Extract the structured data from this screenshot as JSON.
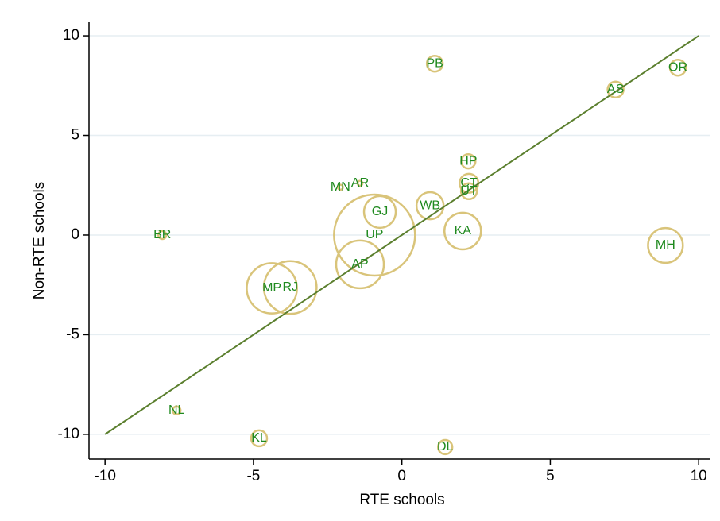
{
  "chart_data": {
    "type": "scatter",
    "x_label": "RTE schools",
    "y_label": "Non-RTE schools",
    "labels": [
      "PB",
      "OR",
      "AS",
      "HP",
      "CT",
      "UT",
      "AR",
      "MN",
      "WB",
      "GJ",
      "UP",
      "KA",
      "BR",
      "MH",
      "AP",
      "MP",
      "RJ",
      "NL",
      "KL",
      "DL"
    ],
    "x": [
      1.11,
      9.3,
      7.2,
      2.24,
      2.26,
      2.26,
      -1.41,
      -2.07,
      0.95,
      -0.74,
      -0.92,
      2.05,
      -8.07,
      8.88,
      -1.41,
      -4.38,
      -3.76,
      -7.59,
      -4.81,
      1.46
    ],
    "values": [
      8.6,
      8.4,
      7.3,
      3.7,
      2.6,
      2.2,
      2.6,
      2.4,
      1.47,
      1.16,
      0,
      0.2,
      0,
      -0.52,
      -1.47,
      -2.67,
      -2.63,
      -8.8,
      -10.2,
      -10.64
    ],
    "sizes": [
      1,
      1,
      1,
      0.8,
      1.4,
      1,
      0.1,
      0.1,
      2.9,
      4,
      26,
      5.3,
      0.25,
      4.8,
      9,
      10,
      11,
      0.25,
      1,
      0.8
    ],
    "marker_color": "#d9c47a",
    "label_color": "#1f8a1f",
    "reference_line": {
      "x": [
        -10,
        10
      ],
      "y": [
        -10,
        10
      ],
      "color": "#5b7f2e"
    },
    "xlim": [
      -10.54,
      10.37
    ],
    "ylim": [
      -11.24,
      10.68
    ],
    "xticks": [
      -10,
      -5,
      0,
      5,
      10
    ],
    "yticks": [
      -10,
      -5,
      0,
      5,
      10
    ],
    "grid": true
  }
}
